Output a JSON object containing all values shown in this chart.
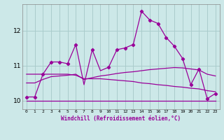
{
  "xlabel": "Windchill (Refroidissement éolien,°C)",
  "bg_color": "#cce8e8",
  "grid_color": "#aacccc",
  "line_color": "#990099",
  "xlim": [
    -0.5,
    23.5
  ],
  "ylim": [
    9.75,
    12.75
  ],
  "xticks": [
    0,
    1,
    2,
    3,
    4,
    5,
    6,
    7,
    8,
    9,
    10,
    11,
    12,
    13,
    14,
    15,
    16,
    17,
    18,
    19,
    20,
    21,
    22,
    23
  ],
  "yticks": [
    10,
    11,
    12
  ],
  "series": [
    [
      10.1,
      10.1,
      10.75,
      11.1,
      11.1,
      11.05,
      11.6,
      10.45,
      11.45,
      10.85,
      10.95,
      11.45,
      11.5,
      11.6,
      12.55,
      12.3,
      12.2,
      11.8,
      11.55,
      11.2,
      10.45,
      10.9,
      10.05,
      10.2
    ],
    [
      10.5,
      10.5,
      10.6,
      10.68,
      10.7,
      10.72,
      10.75,
      10.6,
      10.65,
      10.7,
      10.73,
      10.77,
      10.8,
      10.82,
      10.85,
      10.88,
      10.9,
      10.92,
      10.94,
      10.93,
      10.9,
      10.87,
      10.75,
      10.7
    ],
    [
      10.75,
      10.75,
      10.75,
      10.75,
      10.75,
      10.75,
      10.72,
      10.62,
      10.62,
      10.62,
      10.6,
      10.58,
      10.56,
      10.54,
      10.5,
      10.48,
      10.45,
      10.43,
      10.4,
      10.38,
      10.35,
      10.33,
      10.28,
      10.25
    ],
    [
      10.0,
      10.0,
      10.0,
      10.0,
      10.0,
      10.0,
      10.0,
      10.0,
      10.0,
      10.0,
      10.0,
      10.0,
      10.0,
      10.0,
      10.0,
      10.0,
      10.0,
      10.0,
      10.0,
      10.0,
      10.0,
      10.0,
      10.0,
      10.0
    ]
  ],
  "show_markers": [
    true,
    false,
    false,
    false
  ],
  "marker_indices": [
    0,
    1,
    2,
    3,
    4,
    5,
    6,
    8,
    10,
    11,
    12,
    13,
    14,
    15,
    16,
    17,
    18,
    19,
    20,
    21,
    22,
    23
  ]
}
